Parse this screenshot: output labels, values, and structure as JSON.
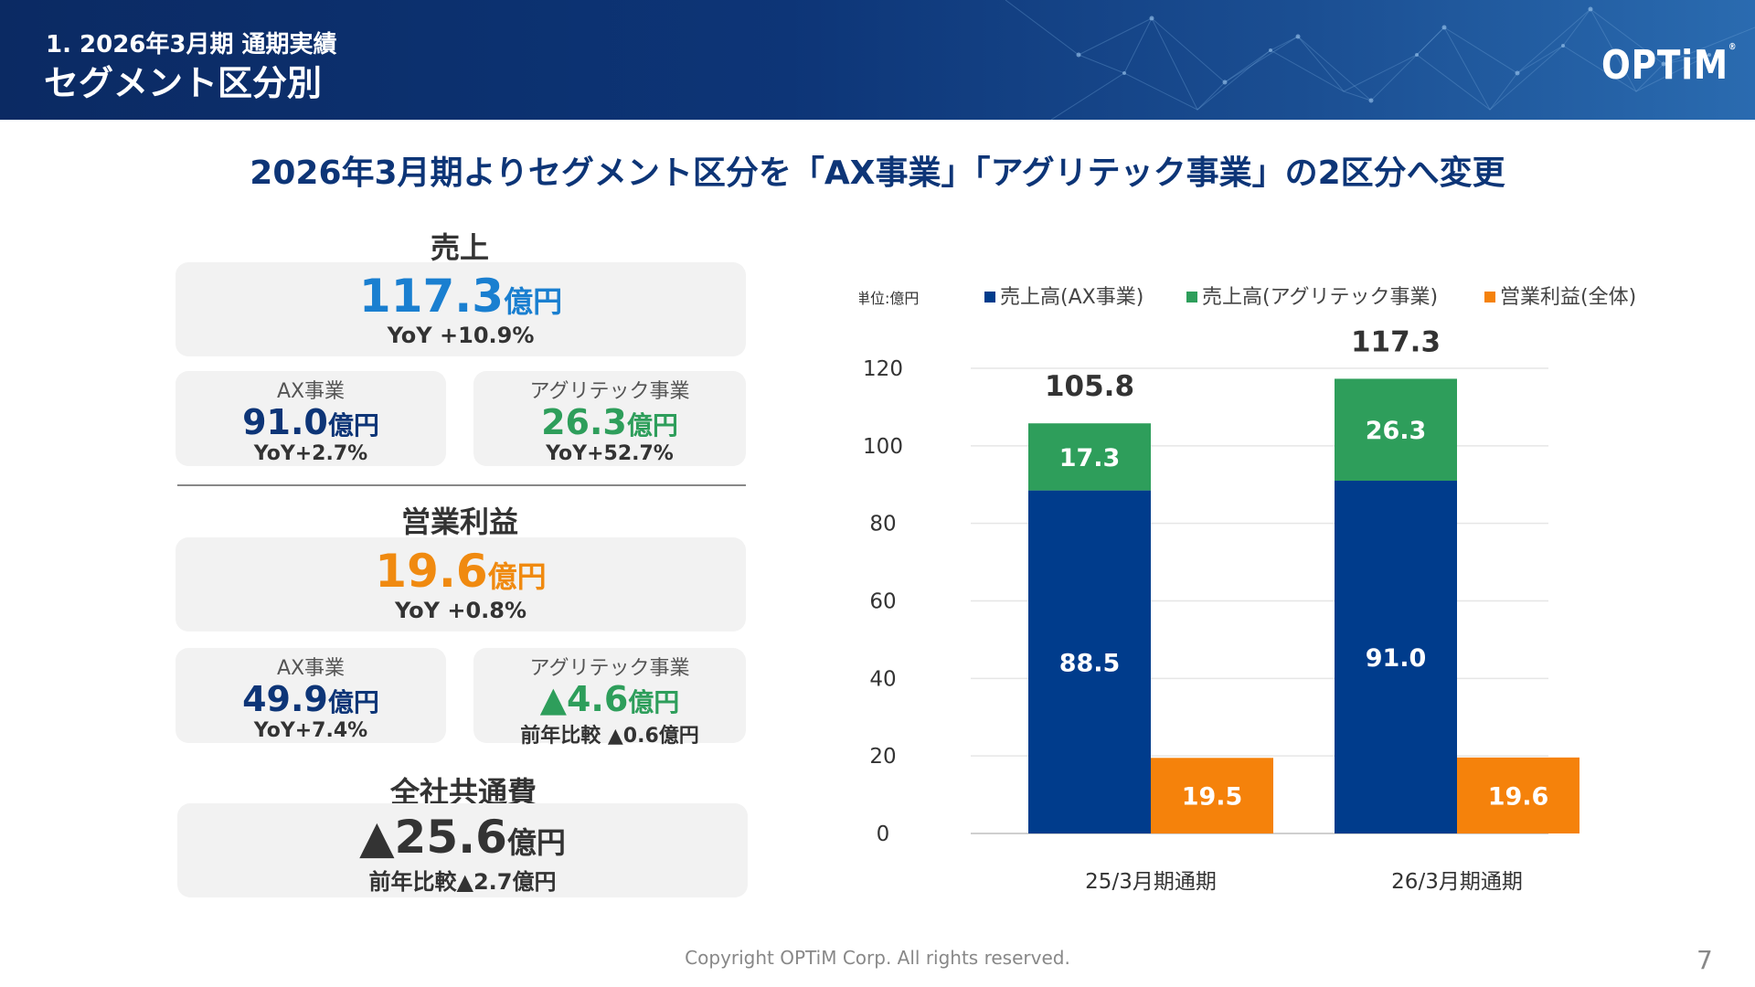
{
  "header": {
    "subtitle": "1. 2026年3月期 通期実績",
    "title": "セグメント区分別",
    "logo": "OPTiM",
    "logo_mark": "®"
  },
  "headline": "2026年3月期よりセグメント区分を「AX事業」「アグリテック事業」の2区分へ変更",
  "sales": {
    "title": "売上",
    "value": "117.3",
    "unit": "億円",
    "yoy": "YoY +10.9%",
    "ax": {
      "label": "AX事業",
      "value": "91.0",
      "unit": "億円",
      "yoy": "YoY+2.7%"
    },
    "agri": {
      "label": "アグリテック事業",
      "value": "26.3",
      "unit": "億円",
      "yoy": "YoY+52.7%"
    }
  },
  "op_profit": {
    "title": "営業利益",
    "value": "19.6",
    "unit": "億円",
    "yoy": "YoY +0.8%",
    "ax": {
      "label": "AX事業",
      "value": "49.9",
      "unit": "億円",
      "yoy": "YoY+7.4%"
    },
    "agri": {
      "label": "アグリテック事業",
      "value": "▲4.6",
      "unit": "億円",
      "yoy": "前年比較 ▲0.6億円"
    }
  },
  "common_cost": {
    "title": "全社共通費",
    "value": "▲25.6",
    "unit": "億円",
    "yoy": "前年比較▲2.7億円"
  },
  "chart_data": {
    "type": "bar",
    "unit_label": "単位:億円",
    "categories": [
      "25/3月期通期",
      "26/3月期通期"
    ],
    "series": [
      {
        "name": "売上高(AX事業)",
        "values": [
          88.5,
          91.0
        ],
        "color": "#003c8c",
        "stack": "sales"
      },
      {
        "name": "売上高(アグリテック事業)",
        "values": [
          17.3,
          26.3
        ],
        "color": "#2e9e5b",
        "stack": "sales"
      },
      {
        "name": "営業利益(全体)",
        "values": [
          19.5,
          19.6
        ],
        "color": "#f5820b",
        "stack": "profit"
      }
    ],
    "totals": [
      "105.8",
      "117.3"
    ],
    "data_labels": [
      [
        "88.5",
        "91.0"
      ],
      [
        "17.3",
        "26.3"
      ],
      [
        "19.5",
        "19.6"
      ]
    ],
    "y_ticks": [
      "0",
      "20",
      "40",
      "60",
      "80",
      "100",
      "120"
    ],
    "ylim": [
      0,
      120
    ],
    "grid": true,
    "legend_position": "top"
  },
  "footer": "Copyright OPTiM Corp. All rights reserved.",
  "page_number": "7"
}
